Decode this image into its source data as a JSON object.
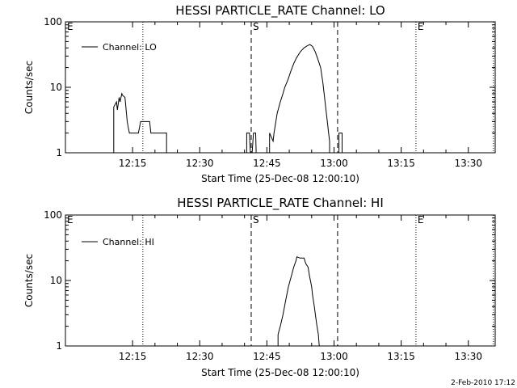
{
  "footer": "2-Feb-2010 17:12",
  "chart_data": [
    {
      "type": "line",
      "title": "HESSI PARTICLE_RATE Channel: LO",
      "xlabel": "Start Time (25-Dec-08 12:00:10)",
      "ylabel": "Counts/sec",
      "yscale": "log",
      "ylim": [
        1,
        100
      ],
      "xlim_minutes": [
        0,
        96
      ],
      "x_ticks": [
        "12:15",
        "12:30",
        "12:45",
        "13:00",
        "13:15",
        "13:30"
      ],
      "y_ticks": [
        "1",
        "10",
        "100"
      ],
      "legend": {
        "label": "Channel: LO",
        "position": "top-left"
      },
      "markers": [
        {
          "label": "E",
          "x": 0,
          "style": "dotted"
        },
        {
          "label": "",
          "x": 17.3,
          "style": "dotted"
        },
        {
          "label": "S",
          "x": 41.5,
          "style": "dashed"
        },
        {
          "label": "",
          "x": 60.8,
          "style": "dashed"
        },
        {
          "label": "E",
          "x": 78.3,
          "style": "dotted"
        },
        {
          "label": "",
          "x": 95.6,
          "style": "dotted"
        }
      ],
      "series": [
        {
          "name": "Channel: LO",
          "x": [
            10.8,
            10.8,
            11.4,
            11.6,
            12,
            12.2,
            12.6,
            12.8,
            13.3,
            13.8,
            14,
            14.3,
            14.8,
            15.3,
            16,
            16.3,
            16.8,
            17.2,
            17.5,
            18.1,
            18.8,
            19.1,
            19.3,
            20,
            20.5,
            21,
            21.6,
            22.2,
            22.6,
            22.6
          ],
          "y": [
            1,
            5,
            6,
            4.5,
            7,
            6,
            8,
            7.5,
            7,
            3,
            2.5,
            2,
            2,
            2,
            2,
            2,
            3,
            3,
            3,
            3,
            3,
            2,
            2,
            2,
            2,
            2,
            2,
            2,
            2,
            1
          ]
        },
        {
          "name": "Channel: LO",
          "x": [
            40.5,
            40.5,
            41.1,
            41.3,
            41.7,
            42,
            42.5,
            42.6,
            43.3,
            43.3
          ],
          "y": [
            1,
            2,
            2,
            1,
            1,
            2,
            2,
            1,
            1,
            1
          ]
        },
        {
          "name": "Channel: LO",
          "x": [
            45.6,
            45.6,
            46.4,
            46.6,
            47,
            47.3,
            48,
            48.6,
            49,
            49.7,
            50.4,
            51,
            51.6,
            52.5,
            53.3,
            54,
            54.6,
            55.2,
            55.8,
            56.3,
            57,
            57.5,
            58,
            58.5,
            58.8,
            59,
            59,
            60,
            60.4
          ],
          "y": [
            1,
            2,
            1.5,
            2,
            3,
            4,
            6,
            8,
            10,
            13,
            18,
            23,
            28,
            35,
            40,
            43,
            45,
            42,
            35,
            28,
            20,
            12,
            6,
            3,
            2,
            1.5,
            1,
            1,
            1
          ]
        },
        {
          "name": "Channel: LO",
          "x": [
            61.1,
            61.1,
            61.8,
            61.8
          ],
          "y": [
            1,
            2,
            2,
            1
          ]
        }
      ]
    },
    {
      "type": "line",
      "title": "HESSI PARTICLE_RATE Channel: HI",
      "xlabel": "Start Time (25-Dec-08 12:00:10)",
      "ylabel": "Counts/sec",
      "yscale": "log",
      "ylim": [
        1,
        100
      ],
      "xlim_minutes": [
        0,
        96
      ],
      "x_ticks": [
        "12:15",
        "12:30",
        "12:45",
        "13:00",
        "13:15",
        "13:30"
      ],
      "y_ticks": [
        "1",
        "10",
        "100"
      ],
      "legend": {
        "label": "Channel: HI",
        "position": "top-left"
      },
      "markers": [
        {
          "label": "E",
          "x": 0,
          "style": "dotted"
        },
        {
          "label": "",
          "x": 17.3,
          "style": "dotted"
        },
        {
          "label": "S",
          "x": 41.5,
          "style": "dashed"
        },
        {
          "label": "",
          "x": 60.8,
          "style": "dashed"
        },
        {
          "label": "E",
          "x": 78.3,
          "style": "dotted"
        },
        {
          "label": "",
          "x": 95.6,
          "style": "dotted"
        }
      ],
      "series": [
        {
          "name": "Channel: HI",
          "x": [
            47.5,
            47.5,
            48,
            48.6,
            49.2,
            49.8,
            50.5,
            51,
            51.5,
            51.7,
            52.4,
            53.3,
            53.7,
            54.2,
            54.5,
            55,
            55.2,
            55.6,
            56,
            56.2,
            56.5,
            56.7
          ],
          "y": [
            1,
            1.5,
            2,
            3,
            5,
            8,
            12,
            16,
            20,
            23,
            22,
            22,
            18,
            16,
            12,
            8,
            6,
            4,
            2.5,
            2,
            1.5,
            1
          ]
        }
      ]
    }
  ]
}
